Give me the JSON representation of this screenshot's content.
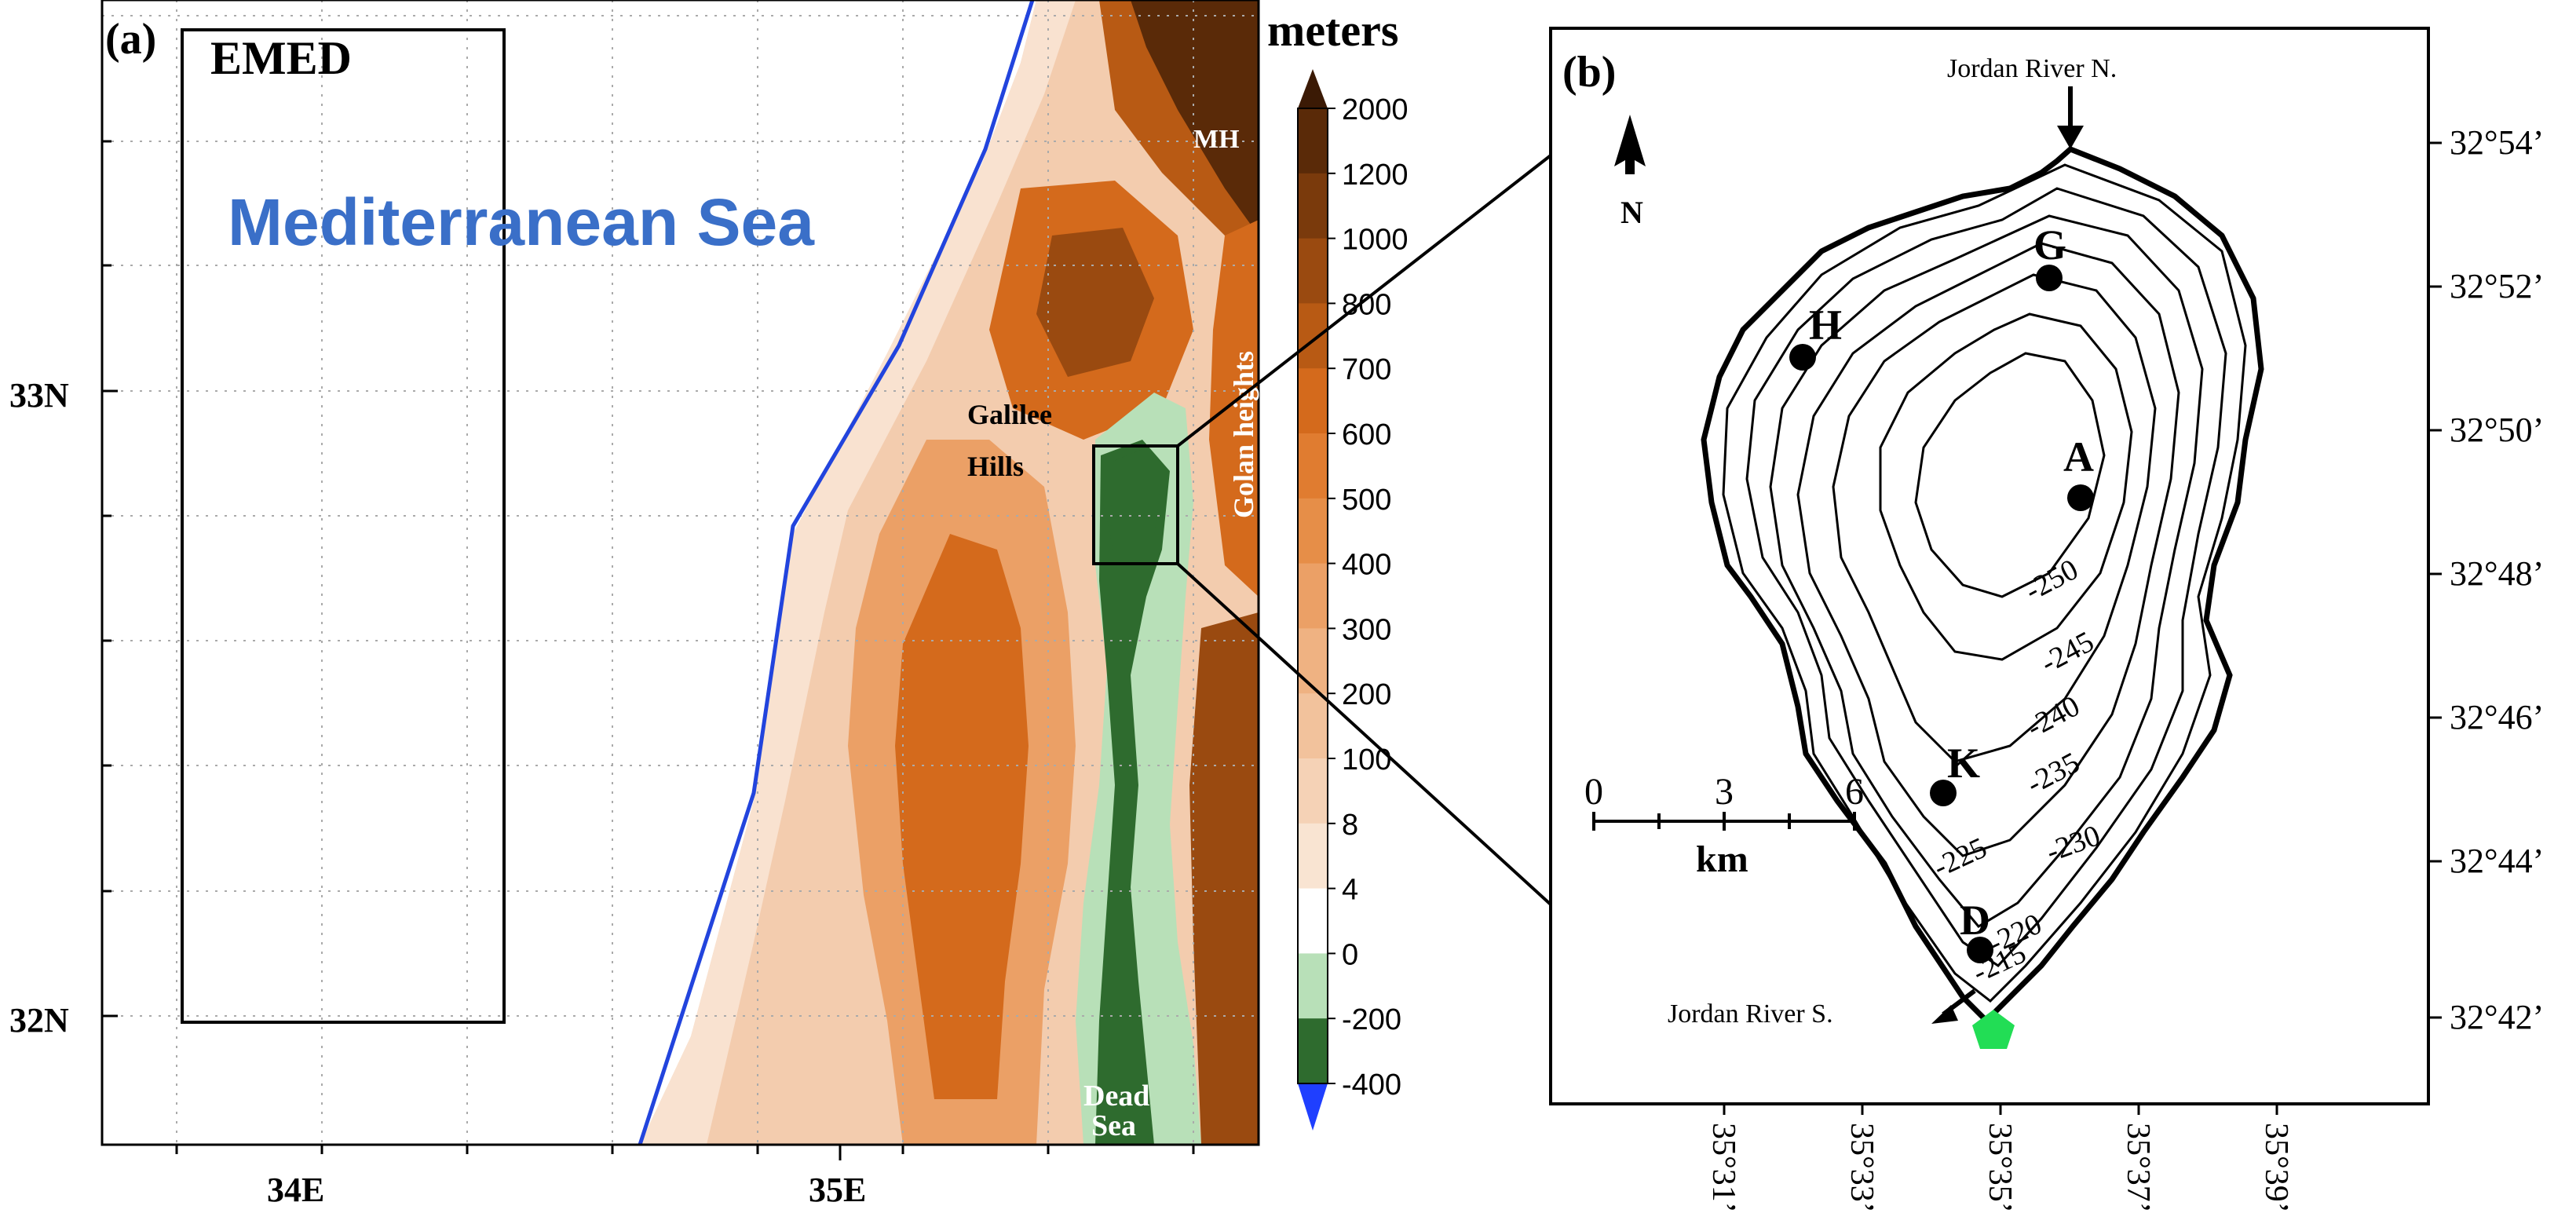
{
  "panel_a": {
    "label": "(a)",
    "domain_label": "EMED",
    "sea_label": "Mediterranean Sea",
    "lat_labels": [
      "33N",
      "32N"
    ],
    "lon_labels": [
      "34E",
      "35E"
    ],
    "place_labels": {
      "galilee_1": "Galilee",
      "galilee_2": "Hills",
      "golan": "Golan heights",
      "mh": "MH",
      "dead_sea_1": "Dead",
      "dead_sea_2": "Sea"
    },
    "colorbar": {
      "title": "meters",
      "levels": [
        "2000",
        "1200",
        "1000",
        "800",
        "700",
        "600",
        "500",
        "400",
        "300",
        "200",
        "100",
        "8",
        "4",
        "0",
        "-200",
        "-400"
      ],
      "colors": [
        "#5a2a08",
        "#7a3a0c",
        "#9a4a10",
        "#b85a14",
        "#d46a1c",
        "#e07c30",
        "#e68e48",
        "#eba066",
        "#efb282",
        "#f2c29c",
        "#f5d2b6",
        "#f9e4d2",
        "#ffffff",
        "#b8e0b8",
        "#2e6b2e"
      ],
      "over_color": "#3b1a05",
      "under_color": "#1f3fff"
    },
    "coastline_color": "#2244dd"
  },
  "panel_b": {
    "label": "(b)",
    "north_label": "N",
    "inflow_label": "Jordan River N.",
    "outflow_label": "Jordan River S.",
    "stations": [
      "A",
      "G",
      "H",
      "K",
      "D"
    ],
    "contour_labels": [
      "-250",
      "-245",
      "-240",
      "-235",
      "-230",
      "-225",
      "-220",
      "-215"
    ],
    "scale_ticks": [
      "0",
      "3",
      "6"
    ],
    "scale_unit": "km",
    "lat_labels": [
      "32°54’",
      "32°52’",
      "32°50’",
      "32°48’",
      "32°46’",
      "32°44’",
      "32°42’"
    ],
    "lon_labels": [
      "35°31’",
      "35°33’",
      "35°35’",
      "35°37’",
      "35°39’"
    ],
    "pentagon_color": "#22dd55"
  }
}
